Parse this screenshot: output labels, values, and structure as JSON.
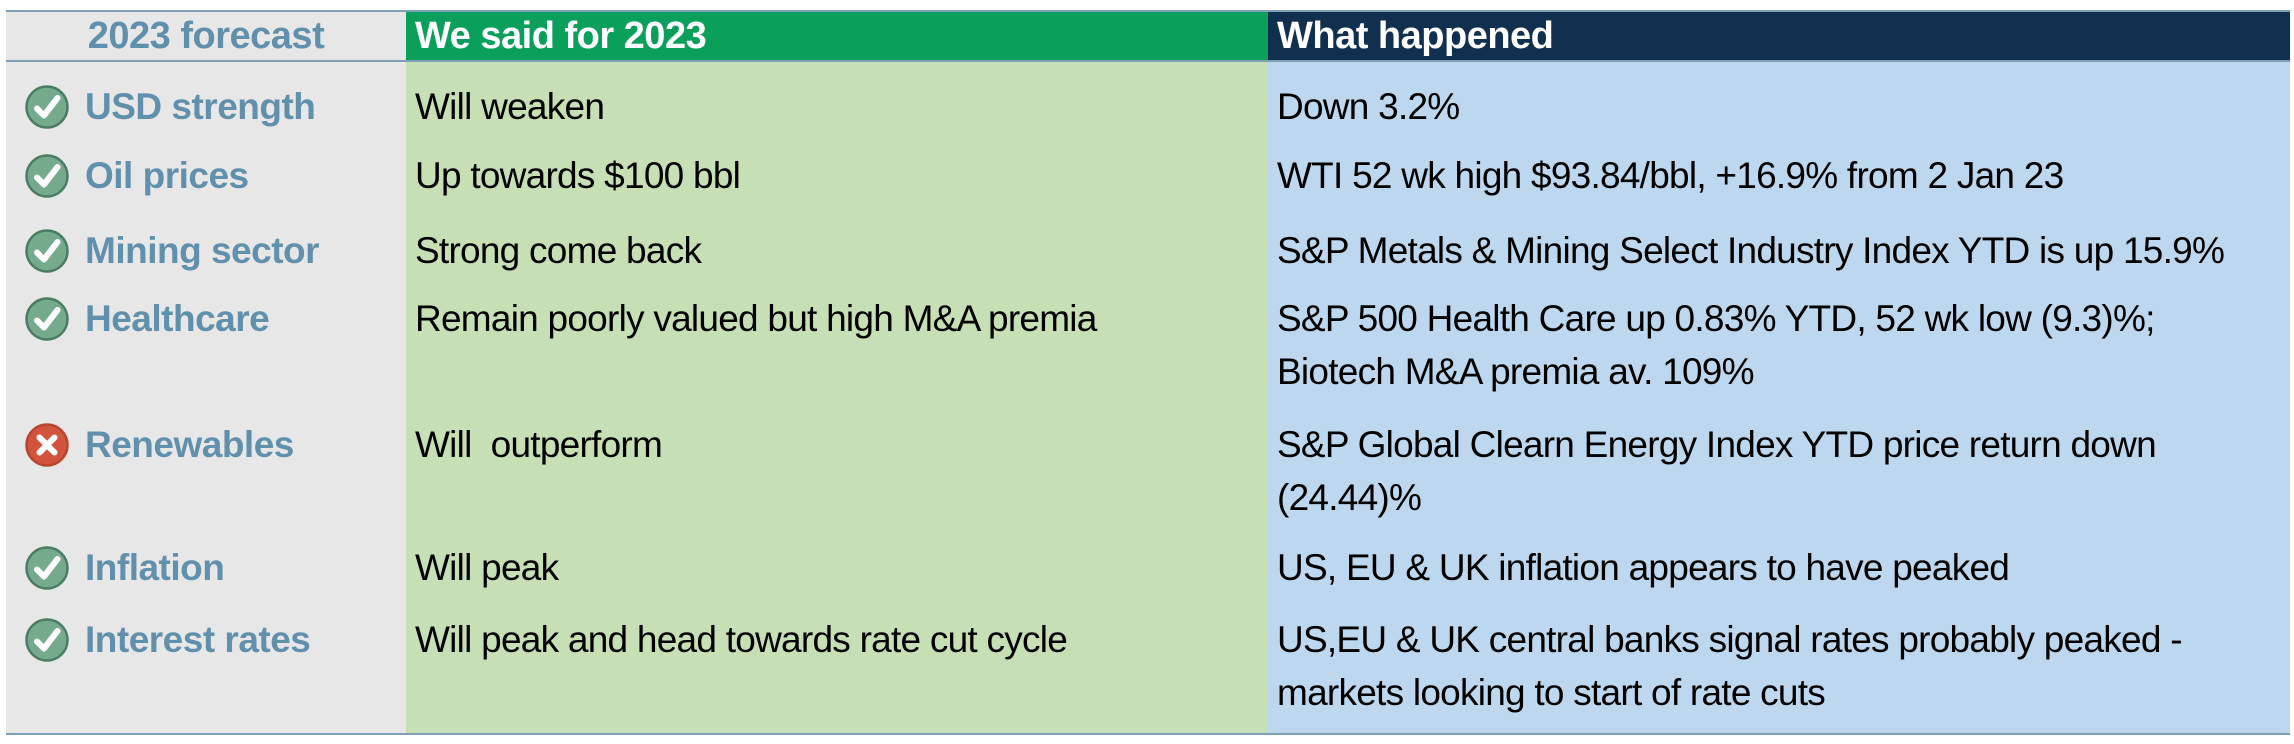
{
  "table": {
    "headers": {
      "forecast_col": "2023 forecast",
      "said_col": "We said for 2023",
      "happened_col": "What happened"
    },
    "rows": [
      {
        "icon": "check",
        "topic": "USD strength",
        "forecast": [
          "Will weaken"
        ],
        "outcome": [
          "Down 3.2%"
        ]
      },
      {
        "icon": "check",
        "topic": "Oil prices",
        "forecast": [
          "Up towards $100 bbl"
        ],
        "outcome": [
          "WTI 52 wk high $93.84/bbl, +16.9% from 2 Jan 23"
        ]
      },
      {
        "icon": "check",
        "topic": "Mining sector",
        "forecast": [
          "Strong come back"
        ],
        "outcome": [
          "S&P Metals & Mining Select Industry Index YTD is up 15.9%"
        ]
      },
      {
        "icon": "check",
        "topic": "Healthcare",
        "forecast": [
          "Remain poorly valued but high M&A premia"
        ],
        "outcome": [
          "S&P 500 Health Care up 0.83% YTD, 52 wk low (9.3)%;",
          "Biotech M&A premia av. 109%"
        ]
      },
      {
        "icon": "cross",
        "topic": "Renewables",
        "forecast": [
          "Will  outperform"
        ],
        "outcome": [
          "S&P Global Clearn Energy Index YTD price return down",
          "(24.44)%"
        ]
      },
      {
        "icon": "check",
        "topic": "Inflation",
        "forecast": [
          "Will peak"
        ],
        "outcome": [
          "US, EU & UK inflation appears to have peaked"
        ]
      },
      {
        "icon": "check",
        "topic": "Interest rates",
        "forecast": [
          "Will peak and head towards rate cut cycle"
        ],
        "outcome": [
          "US,EU & UK central banks signal rates probably peaked -",
          "markets looking to start of rate cuts"
        ]
      }
    ]
  },
  "colors": {
    "green_hdr": "#0aa05c",
    "green_body": "#c6dfb4",
    "navy_hdr": "#11304f",
    "blue_body": "#bdd7ee",
    "gray_col": "#e8e7e7",
    "label_blue": "#6190ac",
    "border_line": "#7f9fb5",
    "check_fill": "#76aa8c",
    "check_ring": "#4a7d63",
    "cross_fill": "#d2543e",
    "cross_ring": "#b8452f",
    "mark_white": "#ffffff"
  }
}
